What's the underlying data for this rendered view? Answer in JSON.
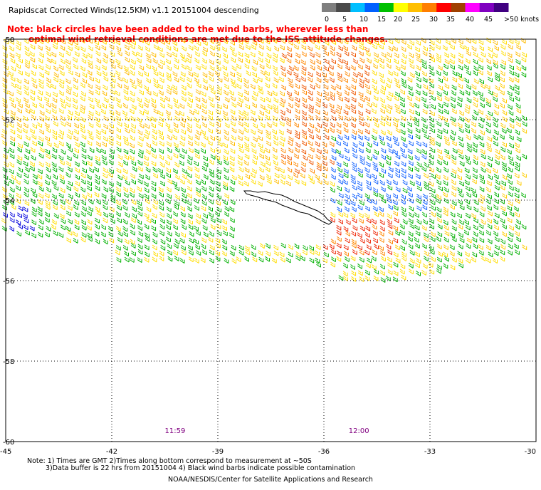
{
  "title": "Rapidscat Corrected Winds(12.5KM) v1.1 20151004 descending",
  "note": {
    "line1": "Note: black circles have been added to the wind barbs, wherever less than",
    "line2": "optimal wind retrieval conditions are met due to the ISS attitude changes."
  },
  "legend": {
    "labels": [
      "0",
      "5",
      "10",
      "15",
      "20",
      "25",
      "30",
      "35",
      "40",
      "45",
      ">50 knots"
    ],
    "colors": [
      "#7f7f7f",
      "#4a4a4a",
      "#00bfff",
      "#0060ff",
      "#00c000",
      "#ffff00",
      "#ffbf00",
      "#ff7f00",
      "#ff0000",
      "#a04000",
      "#ff00ff",
      "#8000c0",
      "#400080"
    ]
  },
  "axes": {
    "x_ticks": [
      "-45",
      "-42",
      "-39",
      "-36",
      "-33",
      "-30"
    ],
    "y_ticks": [
      "-50",
      "-52",
      "-54",
      "-56",
      "-58",
      "-60"
    ],
    "lon_range": [
      -45,
      -30
    ],
    "lat_range": [
      -60,
      -50
    ]
  },
  "time_labels": [
    {
      "text": "11:59",
      "lon": -40.5
    },
    {
      "text": "12:00",
      "lon": -35.3
    }
  ],
  "footnotes": {
    "line1": "Note: 1) Times are GMT 2)Times along bottom correspond to measurement at ~50S",
    "line2": "3)Data buffer is 22 hrs from 20151004 4) Black wind barbs indicate possible contamination",
    "credit": "NOAA/NESDIS/Center for Satellite Applications and Research"
  }
}
